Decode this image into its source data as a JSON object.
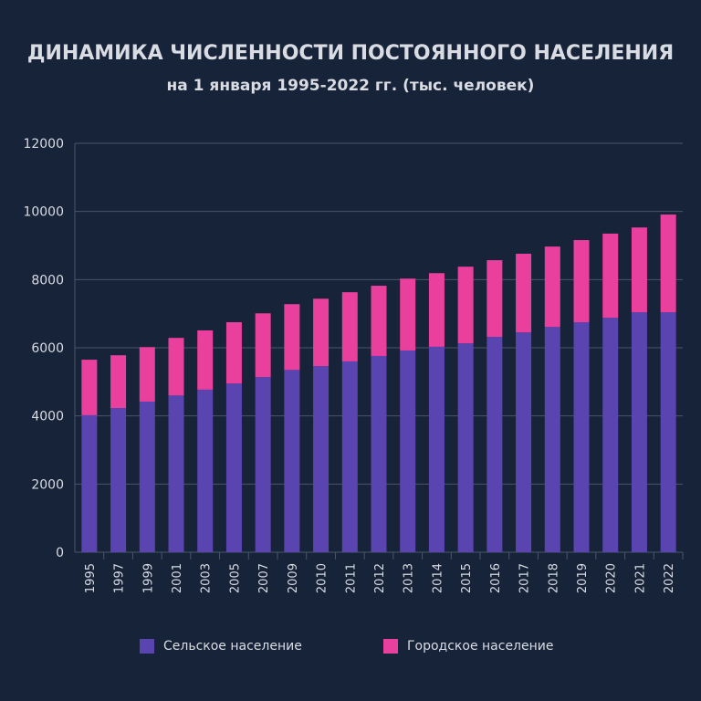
{
  "chart_data": {
    "type": "bar",
    "stacked": true,
    "title": "ДИНАМИКА ЧИСЛЕННОСТИ ПОСТОЯННОГО НАСЕЛЕНИЯ",
    "subtitle": "на 1 января 1995-2022 гг. (тыс. человек)",
    "xlabel": "",
    "ylabel": "",
    "ylim": [
      0,
      12000
    ],
    "yticks": [
      "0",
      "2000",
      "4000",
      "6000",
      "8000",
      "10000",
      "12000"
    ],
    "grid": true,
    "legend_position": "bottom",
    "categories": [
      "1995",
      "1997",
      "1999",
      "2001",
      "2003",
      "2005",
      "2007",
      "2009",
      "2010",
      "2011",
      "2012",
      "2013",
      "2014",
      "2015",
      "2016",
      "2017",
      "2018",
      "2019",
      "2020",
      "2021",
      "2022"
    ],
    "series": [
      {
        "name": "Сельское население",
        "color": "#5a45b0",
        "values": [
          4020,
          4230,
          4420,
          4600,
          4770,
          4950,
          5140,
          5350,
          5460,
          5600,
          5760,
          5920,
          6030,
          6130,
          6320,
          6450,
          6610,
          6750,
          6880,
          7040,
          7040
        ]
      },
      {
        "name": "Городское население",
        "color": "#e8409c",
        "values": [
          1630,
          1550,
          1600,
          1690,
          1740,
          1800,
          1870,
          1930,
          1980,
          2030,
          2060,
          2110,
          2160,
          2250,
          2250,
          2310,
          2360,
          2410,
          2470,
          2490,
          2870
        ]
      }
    ]
  }
}
